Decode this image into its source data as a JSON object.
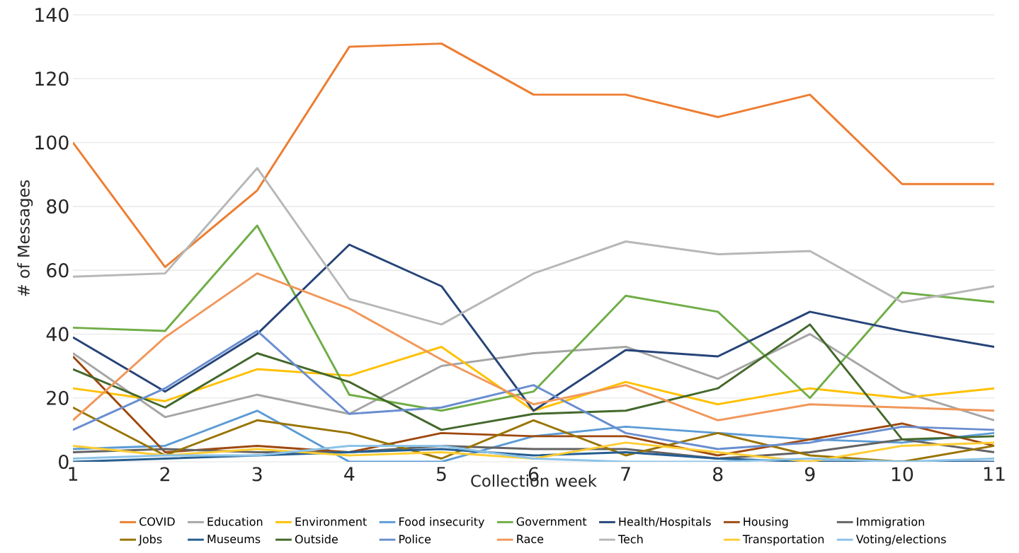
{
  "chart_data": {
    "type": "line",
    "xlabel": "Collection week",
    "ylabel": "# of Messages",
    "x": [
      1,
      2,
      3,
      4,
      5,
      6,
      7,
      8,
      9,
      10,
      11
    ],
    "xlim": [
      1,
      11
    ],
    "xticks": [
      1,
      2,
      3,
      4,
      5,
      6,
      7,
      8,
      9,
      10,
      11
    ],
    "ylim": [
      0,
      140
    ],
    "yticks": [
      0,
      20,
      40,
      60,
      80,
      100,
      120,
      140
    ],
    "grid": "y",
    "legend": "bottom",
    "marker": "none",
    "line_style": "solid",
    "series": [
      {
        "name": "COVID",
        "color": "#ed7d31",
        "values": [
          100,
          61,
          85,
          130,
          131,
          115,
          115,
          108,
          115,
          87,
          87
        ]
      },
      {
        "name": "Education",
        "color": "#a5a5a5",
        "values": [
          34,
          14,
          21,
          15,
          30,
          34,
          36,
          26,
          40,
          22,
          13
        ]
      },
      {
        "name": "Environment",
        "color": "#ffc000",
        "values": [
          23,
          19,
          29,
          27,
          36,
          16,
          25,
          18,
          23,
          20,
          23
        ]
      },
      {
        "name": "Food insecurity",
        "color": "#5b9bd5",
        "values": [
          4,
          5,
          16,
          0,
          0,
          8,
          11,
          9,
          7,
          6,
          9
        ]
      },
      {
        "name": "Government",
        "color": "#70ad47",
        "values": [
          42,
          41,
          74,
          21,
          16,
          22,
          52,
          47,
          20,
          53,
          50
        ]
      },
      {
        "name": "Health/Hospitals",
        "color": "#264478",
        "values": [
          39,
          22,
          40,
          68,
          55,
          16,
          35,
          33,
          47,
          41,
          36
        ]
      },
      {
        "name": "Housing",
        "color": "#9e480e",
        "values": [
          33,
          3,
          5,
          3,
          9,
          8,
          8,
          2,
          7,
          12,
          5
        ]
      },
      {
        "name": "Immigration",
        "color": "#636363",
        "values": [
          3,
          4,
          3,
          3,
          5,
          4,
          4,
          1,
          3,
          7,
          3
        ]
      },
      {
        "name": "Jobs",
        "color": "#997300",
        "values": [
          17,
          2,
          13,
          9,
          1,
          13,
          2,
          9,
          2,
          0,
          5
        ]
      },
      {
        "name": "Museums",
        "color": "#255e91",
        "values": [
          0,
          1,
          2,
          3,
          4,
          2,
          3,
          1,
          0,
          0,
          0
        ]
      },
      {
        "name": "Outside",
        "color": "#43682b",
        "values": [
          29,
          17,
          34,
          25,
          10,
          15,
          16,
          23,
          43,
          7,
          8
        ]
      },
      {
        "name": "Police",
        "color": "#698ed0",
        "values": [
          10,
          23,
          41,
          15,
          17,
          24,
          9,
          4,
          6,
          11,
          10
        ]
      },
      {
        "name": "Race",
        "color": "#f1975a",
        "values": [
          13,
          39,
          59,
          48,
          32,
          18,
          24,
          13,
          18,
          17,
          16
        ]
      },
      {
        "name": "Tech",
        "color": "#b7b7b7",
        "values": [
          58,
          59,
          92,
          51,
          43,
          59,
          69,
          65,
          66,
          50,
          55
        ]
      },
      {
        "name": "Transportation",
        "color": "#ffcd33",
        "values": [
          5,
          2,
          4,
          2,
          3,
          1,
          6,
          3,
          0,
          5,
          6
        ]
      },
      {
        "name": "Voting/elections",
        "color": "#8cc3e8",
        "values": [
          1,
          2,
          2,
          5,
          5,
          1,
          0,
          0,
          1,
          0,
          1
        ]
      }
    ]
  }
}
